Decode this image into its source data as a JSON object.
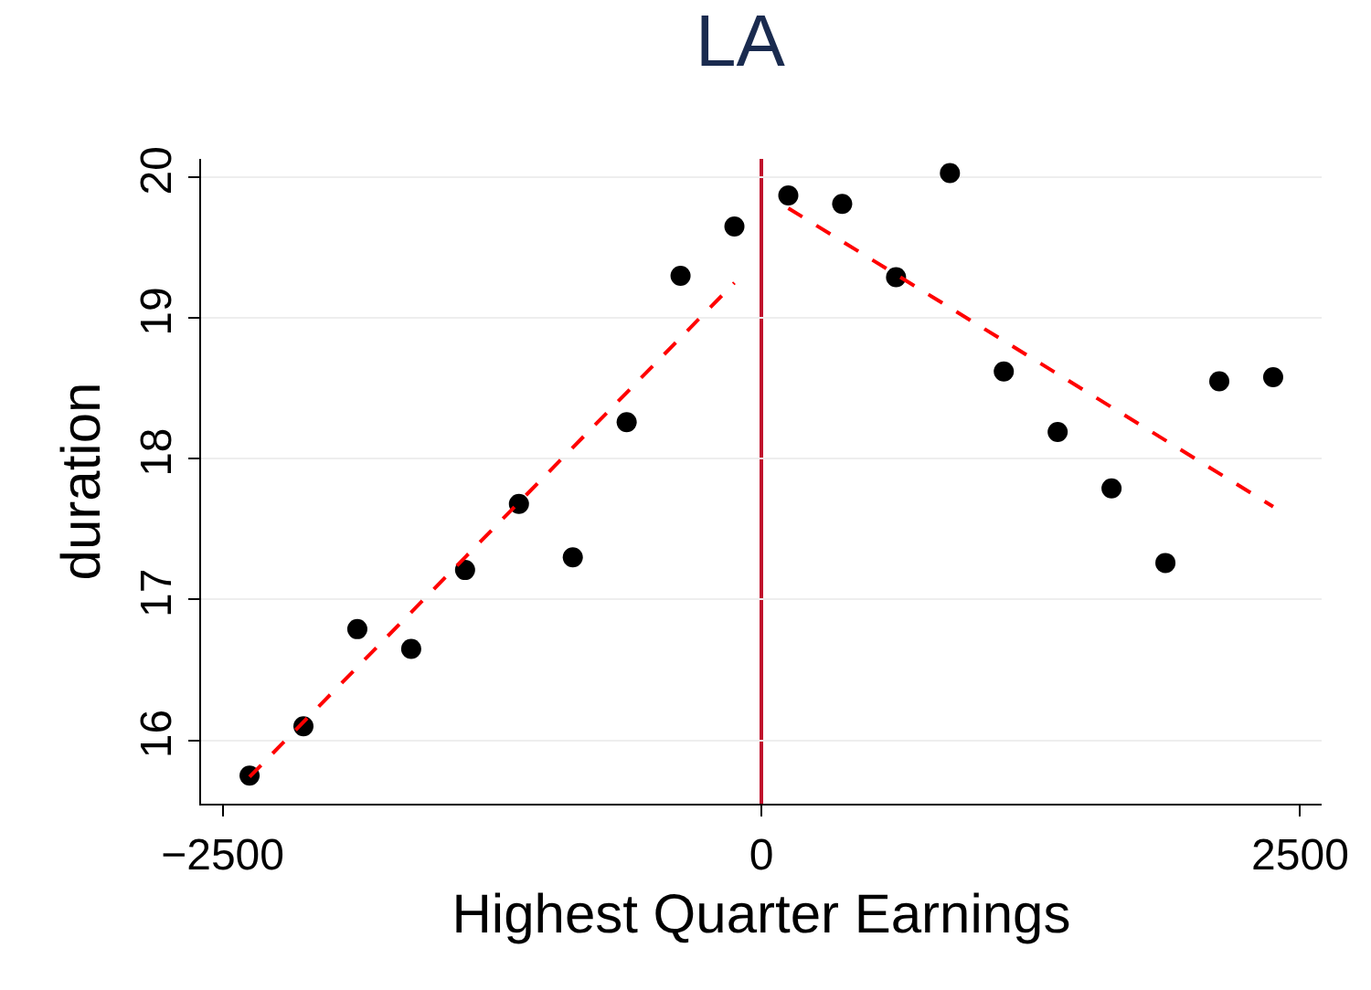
{
  "chart_data": {
    "type": "scatter",
    "title": "LA",
    "xlabel": "Highest Quarter Earnings",
    "ylabel": "duration",
    "xlim": [
      -2600,
      2600
    ],
    "xticks": [
      -2500,
      0,
      2500
    ],
    "ylim": [
      15.55,
      20.13
    ],
    "yticks": [
      16,
      17,
      18,
      19,
      20
    ],
    "grid": "y",
    "ref_lines": [
      {
        "axis": "x",
        "value": 0,
        "color": "#c0102c"
      }
    ],
    "series": [
      {
        "marker": "circle",
        "color": "#000000",
        "x": [
          -2375,
          -2125,
          -1875,
          -1625,
          -1375,
          -1125,
          -875,
          -625,
          -375,
          -125,
          125,
          375,
          625,
          875,
          1125,
          1375,
          1625,
          1875,
          2125,
          2375
        ],
        "values": [
          15.75,
          16.1,
          16.79,
          16.65,
          17.21,
          17.68,
          17.3,
          18.26,
          19.3,
          19.65,
          19.87,
          19.81,
          19.29,
          20.03,
          18.62,
          18.19,
          17.79,
          17.26,
          18.55,
          18.58
        ]
      },
      {
        "type": "line",
        "marker": "none",
        "color": "#ff0000",
        "line_style": "dashed",
        "x": [
          -2375,
          -125
        ],
        "values": [
          15.74,
          19.25
        ]
      },
      {
        "type": "line",
        "marker": "none",
        "color": "#ff0000",
        "line_style": "dashed",
        "x": [
          125,
          2375
        ],
        "values": [
          19.78,
          17.66
        ]
      }
    ]
  }
}
